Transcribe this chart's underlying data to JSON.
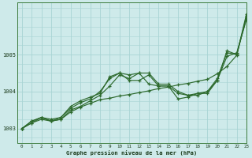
{
  "title": "Graphe pression niveau de la mer (hPa)",
  "bg_color": "#ceeaea",
  "grid_color": "#a8d4d4",
  "line_color": "#2d6a2d",
  "xlim": [
    -0.5,
    23
  ],
  "ylim": [
    1002.6,
    1006.4
  ],
  "yticks": [
    1003,
    1004,
    1005
  ],
  "xtick_labels": [
    "0",
    "1",
    "2",
    "3",
    "4",
    "5",
    "6",
    "7",
    "8",
    "9",
    "10",
    "11",
    "12",
    "13",
    "14",
    "15",
    "16",
    "17",
    "18",
    "19",
    "20",
    "21",
    "22",
    "23"
  ],
  "series": [
    [
      1003.0,
      1003.2,
      1003.3,
      1003.25,
      1003.3,
      1003.6,
      1003.75,
      1003.85,
      1003.95,
      1004.4,
      1004.5,
      1004.45,
      1004.5,
      1004.5,
      1004.2,
      1004.2,
      1004.0,
      1003.9,
      1003.95,
      1004.0,
      1004.3,
      1005.1,
      1005.0,
      1006.1
    ],
    [
      1003.0,
      1003.2,
      1003.3,
      1003.2,
      1003.3,
      1003.55,
      1003.7,
      1003.8,
      1004.0,
      1004.35,
      1004.5,
      1004.3,
      1004.3,
      1004.45,
      1004.15,
      1004.15,
      1003.8,
      1003.85,
      1003.95,
      1003.95,
      1004.3,
      1004.95,
      1005.05,
      1005.95
    ],
    [
      1003.0,
      1003.15,
      1003.3,
      1003.2,
      1003.25,
      1003.5,
      1003.6,
      1003.75,
      1003.9,
      1004.15,
      1004.45,
      1004.35,
      1004.5,
      1004.2,
      1004.15,
      1004.15,
      1003.95,
      1003.9,
      1003.9,
      1004.0,
      1004.35,
      1005.05,
      1005.0,
      1006.0
    ],
    [
      1003.0,
      1003.15,
      1003.25,
      1003.2,
      1003.25,
      1003.45,
      1003.58,
      1003.68,
      1003.78,
      1003.82,
      1003.88,
      1003.92,
      1003.97,
      1004.02,
      1004.08,
      1004.12,
      1004.18,
      1004.22,
      1004.28,
      1004.33,
      1004.48,
      1004.68,
      1004.98,
      1006.05
    ]
  ],
  "figsize": [
    3.2,
    2.0
  ],
  "dpi": 100
}
